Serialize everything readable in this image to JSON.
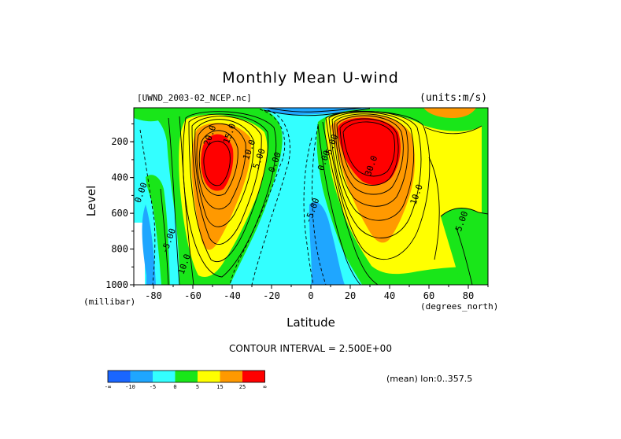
{
  "header": {
    "title": "Monthly Mean U-wind",
    "dataset": "[UWND_2003-02_NCEP.nc]",
    "units": "(units:m/s)"
  },
  "footer": {
    "contour_interval": "CONTOUR INTERVAL = 2.500E+00",
    "mean_lon": "(mean) lon:0..357.5"
  },
  "chart_data": {
    "type": "contour",
    "title": "Monthly Mean U-wind",
    "xlabel": "Latitude",
    "ylabel": "Level",
    "x_unit": "(degrees_north)",
    "y_unit": "(millibar)",
    "xlim": [
      -90,
      90
    ],
    "ylim": [
      1000,
      10
    ],
    "x_ticks": [
      -80,
      -60,
      -40,
      -20,
      0,
      20,
      40,
      60,
      80
    ],
    "y_ticks": [
      200,
      400,
      600,
      800,
      1000
    ],
    "contour_interval": 2.5,
    "jets": [
      {
        "lat": -52,
        "level": 270,
        "max": 25
      },
      {
        "lat": 30,
        "level": 200,
        "max": 37.5
      }
    ],
    "contour_labels": [
      {
        "text": "15.0",
        "lat": -40,
        "level": 160
      },
      {
        "text": "20.0",
        "lat": -50,
        "level": 170
      },
      {
        "text": "10.0",
        "lat": -30,
        "level": 250
      },
      {
        "text": "5.00",
        "lat": -25,
        "level": 300
      },
      {
        "text": "0.00",
        "lat": -17,
        "level": 320
      },
      {
        "text": "0.00",
        "lat": -85,
        "level": 490
      },
      {
        "text": "-5.00",
        "lat": -71,
        "level": 760
      },
      {
        "text": "10.0",
        "lat": -63,
        "level": 890
      },
      {
        "text": "0.00",
        "lat": 8,
        "level": 310
      },
      {
        "text": "5.00",
        "lat": 12,
        "level": 220
      },
      {
        "text": "30.0",
        "lat": 32,
        "level": 340
      },
      {
        "text": "10.0",
        "lat": 55,
        "level": 500
      },
      {
        "text": "-5.00",
        "lat": 2,
        "level": 590
      },
      {
        "text": "5.00",
        "lat": 78,
        "level": 650
      }
    ],
    "colorbar": {
      "colors": [
        "#1a66ff",
        "#1fa6ff",
        "#33ffff",
        "#19e619",
        "#ffff00",
        "#ff9900",
        "#ff0000"
      ],
      "tick_labels": [
        "-∞",
        "-10",
        "-5",
        "0",
        "5",
        "15",
        "25",
        "∞"
      ]
    }
  }
}
